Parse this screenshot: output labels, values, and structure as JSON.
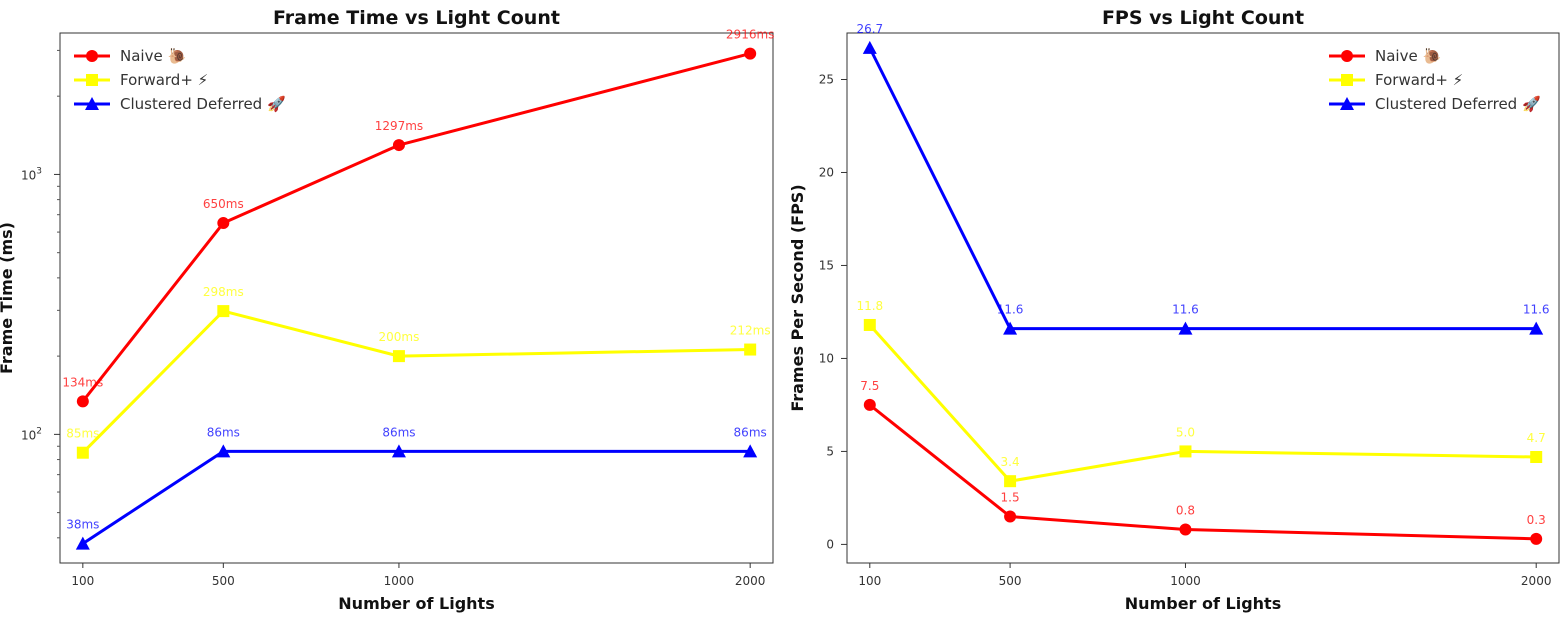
{
  "chart_data": [
    {
      "type": "line",
      "title": "Frame Time vs Light Count",
      "xlabel": "Number of Lights",
      "ylabel": "Frame Time (ms)",
      "y_scale": "log",
      "ylim": [
        32,
        3500
      ],
      "x_ticks": [
        100,
        500,
        1000,
        2000
      ],
      "x_tick_labels": [
        "100",
        "500",
        "1000",
        "2000"
      ],
      "y_ticks": [
        {
          "value": 100,
          "base": "10",
          "exp": "2"
        },
        {
          "value": 1000,
          "base": "10",
          "exp": "3"
        }
      ],
      "legend_position": "top-left",
      "grid": false,
      "series": [
        {
          "name": "Naive 🐌",
          "color": "#ff0000",
          "marker": "circle",
          "x": [
            100,
            500,
            1000,
            2000
          ],
          "values": [
            134,
            650,
            1297,
            2916
          ],
          "labels": [
            "134ms",
            "650ms",
            "1297ms",
            "2916ms"
          ]
        },
        {
          "name": "Forward+ ⚡",
          "color": "#ffff00",
          "marker": "square",
          "x": [
            100,
            500,
            1000,
            2000
          ],
          "values": [
            85,
            298,
            200,
            212
          ],
          "labels": [
            "85ms",
            "298ms",
            "200ms",
            "212ms"
          ]
        },
        {
          "name": "Clustered Deferred 🚀",
          "color": "#0000ff",
          "marker": "triangle",
          "x": [
            100,
            500,
            1000,
            2000
          ],
          "values": [
            38,
            86,
            86,
            86
          ],
          "labels": [
            "38ms",
            "86ms",
            "86ms",
            "86ms"
          ]
        }
      ]
    },
    {
      "type": "line",
      "title": "FPS vs Light Count",
      "xlabel": "Number of Lights",
      "ylabel": "Frames Per Second (FPS)",
      "y_scale": "linear",
      "ylim": [
        -1,
        27.5
      ],
      "x_ticks": [
        100,
        500,
        1000,
        2000
      ],
      "x_tick_labels": [
        "100",
        "500",
        "1000",
        "2000"
      ],
      "y_ticks": [
        {
          "value": 0,
          "label": "0"
        },
        {
          "value": 5,
          "label": "5"
        },
        {
          "value": 10,
          "label": "10"
        },
        {
          "value": 15,
          "label": "15"
        },
        {
          "value": 20,
          "label": "20"
        },
        {
          "value": 25,
          "label": "25"
        }
      ],
      "legend_position": "top-right",
      "grid": false,
      "series": [
        {
          "name": "Naive 🐌",
          "color": "#ff0000",
          "marker": "circle",
          "x": [
            100,
            500,
            1000,
            2000
          ],
          "values": [
            7.5,
            1.5,
            0.8,
            0.3
          ],
          "labels": [
            "7.5",
            "1.5",
            "0.8",
            "0.3"
          ]
        },
        {
          "name": "Forward+ ⚡",
          "color": "#ffff00",
          "marker": "square",
          "x": [
            100,
            500,
            1000,
            2000
          ],
          "values": [
            11.8,
            3.4,
            5.0,
            4.7
          ],
          "labels": [
            "11.8",
            "3.4",
            "5.0",
            "4.7"
          ]
        },
        {
          "name": "Clustered Deferred 🚀",
          "color": "#0000ff",
          "marker": "triangle",
          "x": [
            100,
            500,
            1000,
            2000
          ],
          "values": [
            26.7,
            11.6,
            11.6,
            11.6
          ],
          "labels": [
            "26.7",
            "11.6",
            "11.6",
            "11.6"
          ]
        }
      ]
    }
  ]
}
